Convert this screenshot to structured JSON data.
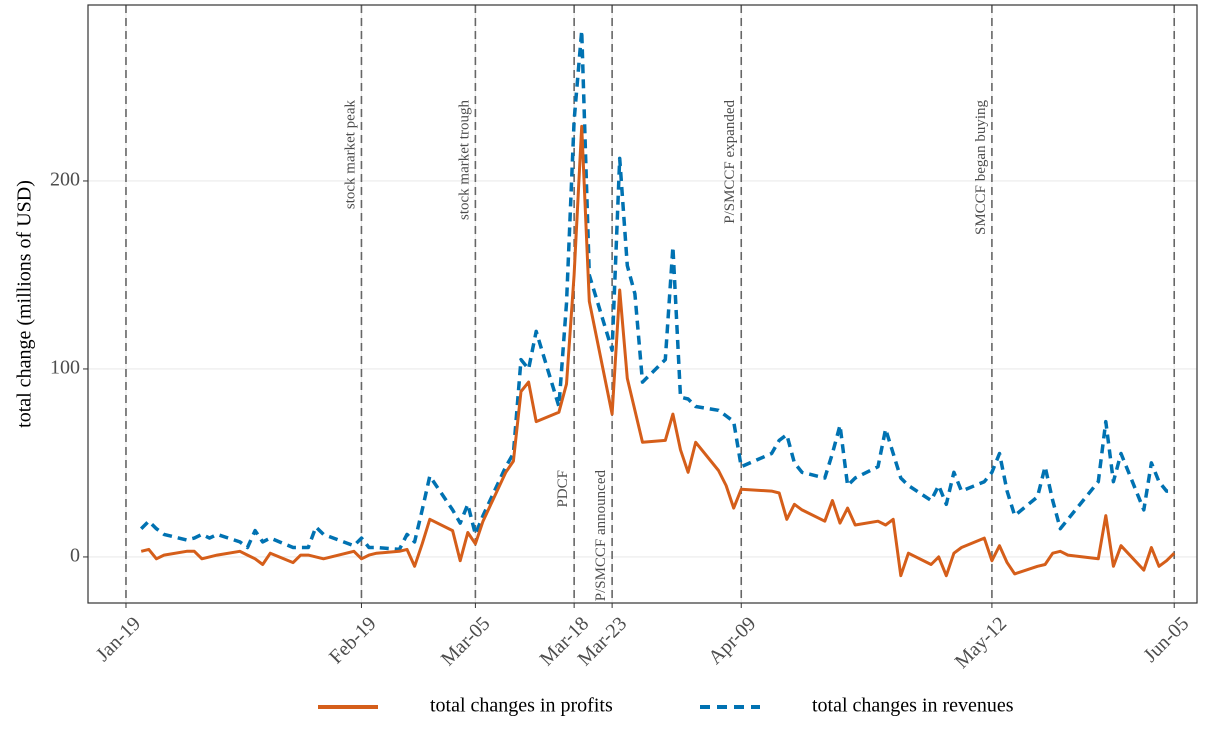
{
  "chart_data": {
    "type": "line",
    "y_label": "total change (millions of USD)",
    "xlim": [
      "Jan-14",
      "Jun-08"
    ],
    "xticks": [
      "Jan-19",
      "Feb-19",
      "Mar-05",
      "Mar-18",
      "Mar-23",
      "Apr-09",
      "May-12",
      "Jun-05"
    ],
    "xtick_lines": "dashed",
    "ylim": [
      -24.5,
      293.6
    ],
    "yticks": [
      0,
      100,
      200
    ],
    "grid": true,
    "legend": "bottom",
    "annotations": [
      {
        "x": "Feb-19",
        "text": "stock market peak"
      },
      {
        "x": "Mar-05",
        "text": "stock market trough"
      },
      {
        "x": "Mar-18",
        "text": "PDCF"
      },
      {
        "x": "Mar-23",
        "text": "P/SMCCF announced"
      },
      {
        "x": "Apr-09",
        "text": "P/SMCCF expanded"
      },
      {
        "x": "May-12",
        "text": "SMCCF began buying"
      }
    ],
    "x": [
      "Jan-21",
      "Jan-22",
      "Jan-23",
      "Jan-24",
      "Jan-27",
      "Jan-28",
      "Jan-29",
      "Jan-30",
      "Jan-31",
      "Feb-03",
      "Feb-04",
      "Feb-05",
      "Feb-06",
      "Feb-07",
      "Feb-10",
      "Feb-11",
      "Feb-12",
      "Feb-13",
      "Feb-14",
      "Feb-18",
      "Feb-19",
      "Feb-20",
      "Feb-21",
      "Feb-24",
      "Feb-25",
      "Feb-26",
      "Feb-27",
      "Feb-28",
      "Mar-02",
      "Mar-03",
      "Mar-04",
      "Mar-05",
      "Mar-06",
      "Mar-09",
      "Mar-10",
      "Mar-11",
      "Mar-12",
      "Mar-13",
      "Mar-16",
      "Mar-17",
      "Mar-18",
      "Mar-19",
      "Mar-20",
      "Mar-23",
      "Mar-24",
      "Mar-25",
      "Mar-26",
      "Mar-27",
      "Mar-30",
      "Mar-31",
      "Apr-01",
      "Apr-02",
      "Apr-03",
      "Apr-06",
      "Apr-07",
      "Apr-08",
      "Apr-09",
      "Apr-13",
      "Apr-14",
      "Apr-15",
      "Apr-16",
      "Apr-17",
      "Apr-20",
      "Apr-21",
      "Apr-22",
      "Apr-23",
      "Apr-24",
      "Apr-27",
      "Apr-28",
      "Apr-29",
      "Apr-30",
      "May-01",
      "May-04",
      "May-05",
      "May-06",
      "May-07",
      "May-08",
      "May-11",
      "May-12",
      "May-13",
      "May-14",
      "May-15",
      "May-18",
      "May-19",
      "May-20",
      "May-21",
      "May-22",
      "May-26",
      "May-27",
      "May-28",
      "May-29",
      "Jun-01",
      "Jun-02",
      "Jun-03",
      "Jun-04",
      "Jun-05"
    ],
    "series": [
      {
        "name": "total changes in profits",
        "color": "#d55e1a",
        "style": "solid",
        "values": [
          3,
          4,
          -1,
          1,
          3,
          3,
          -1,
          0,
          1,
          3,
          1,
          -1,
          -4,
          2,
          -3,
          1,
          1,
          0,
          -1,
          3,
          -1,
          1,
          2,
          3,
          4,
          -5,
          7,
          20,
          14,
          -2,
          13,
          7,
          19,
          45,
          51,
          88,
          93,
          72,
          77,
          92,
          150,
          229,
          136,
          76,
          142,
          95,
          78,
          61,
          62,
          76,
          57,
          45,
          61,
          46,
          38,
          26,
          36,
          35,
          34,
          20,
          28,
          25,
          19,
          30,
          18,
          26,
          17,
          19,
          17,
          20,
          -10,
          2,
          -4,
          0,
          -10,
          2,
          5,
          10,
          -2,
          6,
          -3,
          -9,
          -5,
          -4,
          2,
          3,
          1,
          -1,
          22,
          -5,
          6,
          -7,
          5,
          -5,
          -2,
          2
        ]
      },
      {
        "name": "total changes in revenues",
        "color": "#0072b2",
        "style": "dashed",
        "values": [
          15,
          19,
          15,
          12,
          9,
          10,
          12,
          10,
          12,
          8,
          5,
          14,
          8,
          10,
          5,
          5,
          5,
          16,
          12,
          6,
          10,
          5,
          5,
          4,
          12,
          8,
          25,
          43,
          25,
          18,
          28,
          12,
          22,
          48,
          55,
          105,
          100,
          120,
          80,
          135,
          232,
          280,
          150,
          110,
          212,
          155,
          140,
          93,
          105,
          165,
          85,
          84,
          80,
          78,
          75,
          72,
          48,
          55,
          62,
          65,
          50,
          45,
          42,
          55,
          70,
          38,
          42,
          48,
          68,
          55,
          42,
          38,
          30,
          38,
          28,
          45,
          35,
          40,
          45,
          55,
          35,
          22,
          32,
          48,
          30,
          15,
          20,
          40,
          72,
          40,
          55,
          25,
          50,
          40,
          35,
          35
        ]
      }
    ]
  }
}
